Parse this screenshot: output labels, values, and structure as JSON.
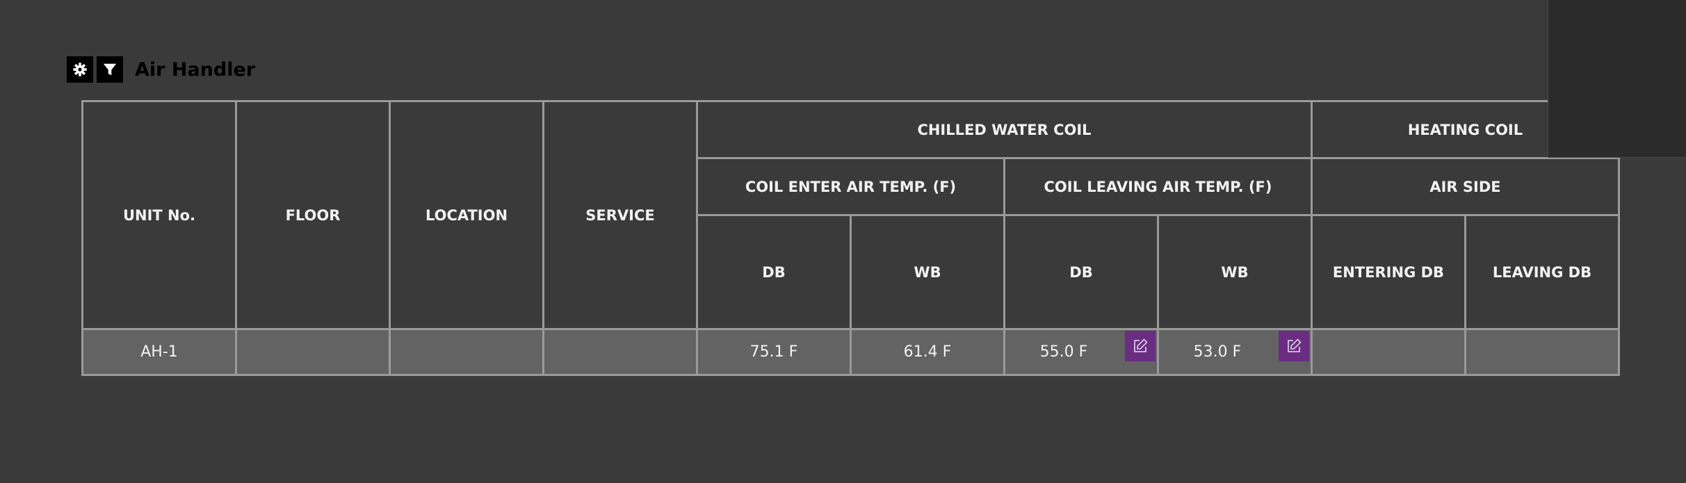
{
  "header": {
    "title": "Air Handler",
    "settings_icon": "gear-icon",
    "filter_icon": "filter-icon"
  },
  "table": {
    "columns": {
      "unit_no": "UNIT No.",
      "floor": "FLOOR",
      "location": "LOCATION",
      "service": "SERVICE",
      "chilled_water_coil": "CHILLED WATER COIL",
      "coil_enter_air_temp": "COIL ENTER AIR TEMP. (F)",
      "coil_leaving_air_temp": "COIL LEAVING AIR TEMP. (F)",
      "heating_coil": "HEATING COIL",
      "air_side": "AIR SIDE",
      "enter_db": "DB",
      "enter_wb": "WB",
      "leave_db": "DB",
      "leave_wb": "WB",
      "entering_db": "ENTERING DB",
      "leaving_db": "LEAVING DB"
    },
    "rows": [
      {
        "unit_no": "AH-1",
        "floor": "",
        "location": "",
        "service": "",
        "enter_db": "75.1 F",
        "enter_wb": "61.4 F",
        "leave_db": "55.0 F",
        "leave_wb": "53.0 F",
        "entering_db": "",
        "leaving_db": ""
      }
    ]
  },
  "colors": {
    "background": "#3a3a3a",
    "grid_border": "#9a9a9a",
    "data_row": "#636363",
    "edit_button": "#6a2d82",
    "corner_panel": "#2b2b2b"
  }
}
